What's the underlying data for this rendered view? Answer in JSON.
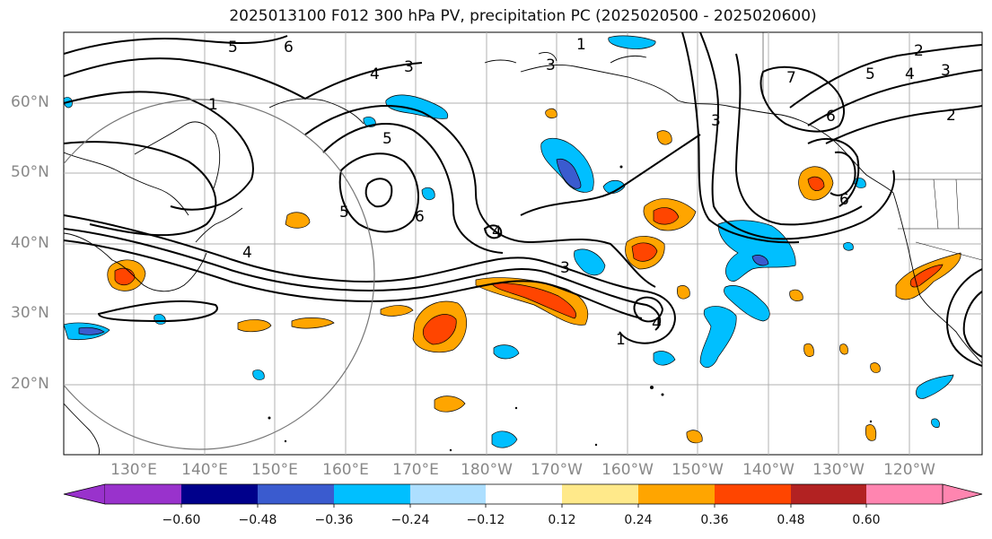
{
  "title": "2025013100 F012 300 hPa PV, precipitation PC (2025020500 - 2025020600)",
  "lat_labels": [
    "60°N",
    "50°N",
    "40°N",
    "30°N",
    "20°N"
  ],
  "lon_labels": [
    "130°E",
    "140°E",
    "150°E",
    "160°E",
    "170°E",
    "180°W",
    "170°W",
    "160°W",
    "150°W",
    "140°W",
    "130°W",
    "120°W"
  ],
  "contour_labels": [
    "5",
    "6",
    "1",
    "4",
    "3",
    "5",
    "6",
    "4",
    "3",
    "1",
    "3",
    "7",
    "5",
    "6",
    "2",
    "4",
    "4",
    "3",
    "1",
    "4",
    "5",
    "6",
    "2",
    "3"
  ],
  "colorbar": {
    "ticks": [
      "−0.60",
      "−0.48",
      "−0.36",
      "−0.24",
      "−0.12",
      "0.12",
      "0.24",
      "0.36",
      "0.48",
      "0.60"
    ],
    "colors": [
      "#9932CC",
      "#00008B",
      "#3A5BCF",
      "#00BFFF",
      "#ADDFFF",
      "#FFFFFF",
      "#FFE98A",
      "#FFA500",
      "#FF4500",
      "#B22222",
      "#FF85B0"
    ]
  }
}
